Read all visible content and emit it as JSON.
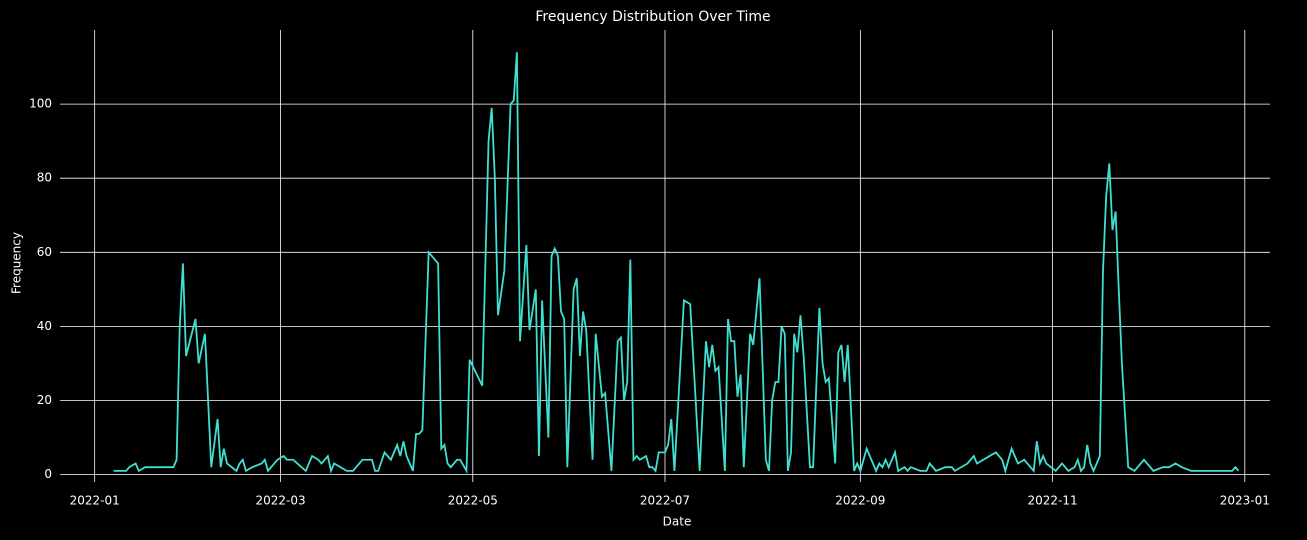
{
  "chart_data": {
    "type": "line",
    "title": "Frequency Distribution Over Time",
    "x_label": "Date",
    "y_label": "Frequency",
    "x": [
      "2022-01-07",
      "2022-01-11",
      "2022-01-12",
      "2022-01-14",
      "2022-01-15",
      "2022-01-17",
      "2022-01-26",
      "2022-01-27",
      "2022-01-28",
      "2022-01-29",
      "2022-01-30",
      "2022-02-02",
      "2022-02-03",
      "2022-02-05",
      "2022-02-07",
      "2022-02-09",
      "2022-02-10",
      "2022-02-11",
      "2022-02-12",
      "2022-02-15",
      "2022-02-16",
      "2022-02-17",
      "2022-02-18",
      "2022-02-20",
      "2022-02-23",
      "2022-02-24",
      "2022-02-25",
      "2022-02-28",
      "2022-03-02",
      "2022-03-03",
      "2022-03-05",
      "2022-03-09",
      "2022-03-11",
      "2022-03-13",
      "2022-03-14",
      "2022-03-16",
      "2022-03-17",
      "2022-03-18",
      "2022-03-22",
      "2022-03-24",
      "2022-03-27",
      "2022-03-30",
      "2022-03-31",
      "2022-04-01",
      "2022-04-03",
      "2022-04-05",
      "2022-04-07",
      "2022-04-08",
      "2022-04-09",
      "2022-04-10",
      "2022-04-12",
      "2022-04-13",
      "2022-04-14",
      "2022-04-15",
      "2022-04-17",
      "2022-04-20",
      "2022-04-21",
      "2022-04-22",
      "2022-04-23",
      "2022-04-24",
      "2022-04-26",
      "2022-04-27",
      "2022-04-29",
      "2022-04-30",
      "2022-05-04",
      "2022-05-06",
      "2022-05-07",
      "2022-05-08",
      "2022-05-09",
      "2022-05-11",
      "2022-05-13",
      "2022-05-14",
      "2022-05-15",
      "2022-05-16",
      "2022-05-18",
      "2022-05-19",
      "2022-05-21",
      "2022-05-22",
      "2022-05-23",
      "2022-05-25",
      "2022-05-26",
      "2022-05-27",
      "2022-05-28",
      "2022-05-29",
      "2022-05-30",
      "2022-05-31",
      "2022-06-02",
      "2022-06-03",
      "2022-06-04",
      "2022-06-05",
      "2022-06-06",
      "2022-06-08",
      "2022-06-09",
      "2022-06-11",
      "2022-06-12",
      "2022-06-14",
      "2022-06-16",
      "2022-06-17",
      "2022-06-18",
      "2022-06-19",
      "2022-06-20",
      "2022-06-21",
      "2022-06-22",
      "2022-06-23",
      "2022-06-25",
      "2022-06-26",
      "2022-06-27",
      "2022-06-28",
      "2022-06-29",
      "2022-07-01",
      "2022-07-02",
      "2022-07-03",
      "2022-07-04",
      "2022-07-07",
      "2022-07-09",
      "2022-07-12",
      "2022-07-14",
      "2022-07-15",
      "2022-07-16",
      "2022-07-17",
      "2022-07-18",
      "2022-07-20",
      "2022-07-21",
      "2022-07-22",
      "2022-07-23",
      "2022-07-24",
      "2022-07-25",
      "2022-07-26",
      "2022-07-28",
      "2022-07-29",
      "2022-07-31",
      "2022-08-02",
      "2022-08-03",
      "2022-08-04",
      "2022-08-05",
      "2022-08-06",
      "2022-08-07",
      "2022-08-08",
      "2022-08-09",
      "2022-08-10",
      "2022-08-11",
      "2022-08-12",
      "2022-08-13",
      "2022-08-14",
      "2022-08-16",
      "2022-08-17",
      "2022-08-19",
      "2022-08-20",
      "2022-08-21",
      "2022-08-22",
      "2022-08-24",
      "2022-08-25",
      "2022-08-26",
      "2022-08-27",
      "2022-08-28",
      "2022-08-30",
      "2022-08-31",
      "2022-09-01",
      "2022-09-02",
      "2022-09-03",
      "2022-09-04",
      "2022-09-06",
      "2022-09-07",
      "2022-09-08",
      "2022-09-09",
      "2022-09-10",
      "2022-09-12",
      "2022-09-13",
      "2022-09-15",
      "2022-09-16",
      "2022-09-17",
      "2022-09-20",
      "2022-09-22",
      "2022-09-23",
      "2022-09-25",
      "2022-09-28",
      "2022-09-30",
      "2022-10-01",
      "2022-10-05",
      "2022-10-07",
      "2022-10-08",
      "2022-10-12",
      "2022-10-14",
      "2022-10-16",
      "2022-10-17",
      "2022-10-19",
      "2022-10-21",
      "2022-10-23",
      "2022-10-25",
      "2022-10-26",
      "2022-10-27",
      "2022-10-28",
      "2022-10-29",
      "2022-10-30",
      "2022-11-02",
      "2022-11-04",
      "2022-11-06",
      "2022-11-08",
      "2022-11-09",
      "2022-11-10",
      "2022-11-11",
      "2022-11-12",
      "2022-11-13",
      "2022-11-14",
      "2022-11-16",
      "2022-11-17",
      "2022-11-18",
      "2022-11-19",
      "2022-11-20",
      "2022-11-21",
      "2022-11-22",
      "2022-11-23",
      "2022-11-25",
      "2022-11-27",
      "2022-11-30",
      "2022-12-03",
      "2022-12-06",
      "2022-12-08",
      "2022-12-10",
      "2022-12-12",
      "2022-12-15",
      "2022-12-28",
      "2022-12-29",
      "2022-12-30"
    ],
    "series": [
      {
        "name": "Frequency",
        "color": "#40e0d0",
        "values": [
          1,
          1,
          2,
          3,
          1,
          2,
          2,
          4,
          40,
          57,
          32,
          42,
          30,
          38,
          2,
          15,
          2,
          7,
          3,
          1,
          3,
          4,
          1,
          2,
          3,
          4,
          1,
          4,
          5,
          4,
          4,
          1,
          5,
          4,
          3,
          5,
          1,
          3,
          1,
          1,
          4,
          4,
          1,
          1,
          6,
          4,
          8,
          5,
          9,
          5,
          1,
          11,
          11,
          12,
          60,
          57,
          7,
          8,
          3,
          2,
          4,
          4,
          1,
          31,
          24,
          90,
          99,
          80,
          43,
          55,
          100,
          101,
          114,
          36,
          62,
          39,
          50,
          5,
          47,
          10,
          59,
          61,
          59,
          44,
          42,
          2,
          50,
          53,
          32,
          44,
          39,
          4,
          38,
          21,
          22,
          1,
          36,
          37,
          20,
          25,
          58,
          4,
          5,
          4,
          5,
          2,
          2,
          1,
          6,
          6,
          8,
          15,
          1,
          47,
          46,
          1,
          36,
          29,
          35,
          28,
          29,
          1,
          42,
          36,
          36,
          21,
          27,
          2,
          38,
          35,
          53,
          4,
          1,
          20,
          25,
          25,
          40,
          38,
          1,
          6,
          38,
          33,
          43,
          32,
          2,
          2,
          45,
          30,
          25,
          26,
          3,
          33,
          35,
          25,
          35,
          1,
          3,
          1,
          4,
          7,
          5,
          1,
          3,
          2,
          4,
          2,
          6,
          1,
          2,
          1,
          2,
          1,
          1,
          3,
          1,
          2,
          2,
          1,
          3,
          5,
          3,
          5,
          6,
          4,
          1,
          7,
          3,
          4,
          2,
          1,
          9,
          3,
          5,
          3,
          1,
          3,
          1,
          2,
          4,
          1,
          2,
          8,
          3,
          1,
          5,
          55,
          75,
          84,
          66,
          71,
          50,
          30,
          2,
          1,
          4,
          1,
          2,
          2,
          3,
          2,
          1,
          1,
          2,
          1
        ]
      }
    ],
    "xlim": [
      "2021-12-21",
      "2023-01-09"
    ],
    "xticks": [
      {
        "value": "2022-01-01",
        "label": "2022-01"
      },
      {
        "value": "2022-03-01",
        "label": "2022-03"
      },
      {
        "value": "2022-05-01",
        "label": "2022-05"
      },
      {
        "value": "2022-07-01",
        "label": "2022-07"
      },
      {
        "value": "2022-09-01",
        "label": "2022-09"
      },
      {
        "value": "2022-11-01",
        "label": "2022-11"
      },
      {
        "value": "2023-01-01",
        "label": "2023-01"
      }
    ],
    "ylim": [
      -2,
      120
    ],
    "yticks": [
      0,
      20,
      40,
      60,
      80,
      100
    ],
    "grid": true
  }
}
